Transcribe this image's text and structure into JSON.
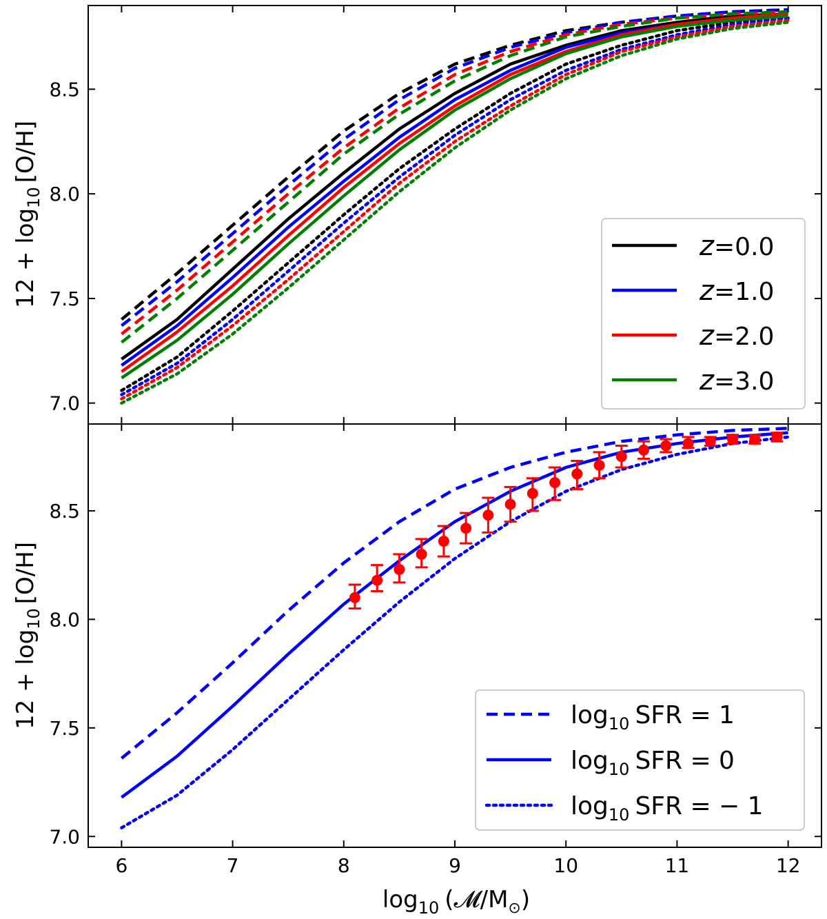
{
  "figure": {
    "type": "two-panel line chart",
    "xlabel": "log10 (𝓜/M⊙)",
    "xlabel_parts": {
      "prefix": "log",
      "sub": "10",
      "rest": "(𝓜/M",
      "sun": "⊙",
      "close": ")"
    },
    "ylabel_parts": {
      "prefix": "12 + log",
      "sub": "10",
      "rest": "[O/H]"
    }
  },
  "chart_data": [
    {
      "type": "line",
      "panel": "top",
      "title": "",
      "xlabel": "log10 (𝓜/M⊙)",
      "ylabel": "12 + log10 [O/H]",
      "xlim": [
        5.7,
        12.3
      ],
      "ylim": [
        6.9,
        8.9
      ],
      "xticks": [
        6,
        7,
        8,
        9,
        10,
        11,
        12
      ],
      "yticks": [
        7.0,
        7.5,
        8.0,
        8.5
      ],
      "ytick_labels": [
        "7.0",
        "7.5",
        "8.0",
        "8.5"
      ],
      "legend": {
        "placement": "lower-right",
        "entries": [
          {
            "label_var": "z",
            "label_value": "=0.0",
            "color": "#000000"
          },
          {
            "label_var": "z",
            "label_value": "=1.0",
            "color": "#0000ff"
          },
          {
            "label_var": "z",
            "label_value": "=2.0",
            "color": "#ff0000"
          },
          {
            "label_var": "z",
            "label_value": "=3.0",
            "color": "#007f00"
          }
        ]
      },
      "x": [
        6,
        6.5,
        7,
        7.5,
        8,
        8.5,
        9,
        9.5,
        10,
        10.5,
        11,
        11.5,
        12
      ],
      "series": [
        {
          "name": "z=0.0 log10 SFR=1",
          "color": "#000000",
          "style": "dashed",
          "values": [
            7.4,
            7.62,
            7.85,
            8.08,
            8.3,
            8.48,
            8.62,
            8.71,
            8.78,
            8.82,
            8.85,
            8.87,
            8.88
          ]
        },
        {
          "name": "z=0.0 log10 SFR=0",
          "color": "#000000",
          "style": "solid",
          "values": [
            7.21,
            7.4,
            7.64,
            7.88,
            8.1,
            8.31,
            8.48,
            8.62,
            8.71,
            8.78,
            8.82,
            8.85,
            8.86
          ]
        },
        {
          "name": "z=0.0 log10 SFR=-1",
          "color": "#000000",
          "style": "dotted",
          "values": [
            7.06,
            7.22,
            7.44,
            7.67,
            7.9,
            8.12,
            8.31,
            8.48,
            8.62,
            8.71,
            8.78,
            8.82,
            8.84
          ]
        },
        {
          "name": "z=1.0 log10 SFR=1",
          "color": "#0000ff",
          "style": "dashed",
          "values": [
            7.37,
            7.58,
            7.81,
            8.04,
            8.26,
            8.45,
            8.6,
            8.7,
            8.77,
            8.82,
            8.85,
            8.87,
            8.88
          ]
        },
        {
          "name": "z=1.0 log10 SFR=0",
          "color": "#0000ff",
          "style": "solid",
          "values": [
            7.18,
            7.37,
            7.6,
            7.84,
            8.06,
            8.27,
            8.45,
            8.59,
            8.7,
            8.77,
            8.81,
            8.84,
            8.86
          ]
        },
        {
          "name": "z=1.0 log10 SFR=-1",
          "color": "#0000ff",
          "style": "dotted",
          "values": [
            7.04,
            7.19,
            7.4,
            7.63,
            7.86,
            8.08,
            8.28,
            8.45,
            8.59,
            8.69,
            8.76,
            8.81,
            8.84
          ]
        },
        {
          "name": "z=2.0 log10 SFR=1",
          "color": "#ff0000",
          "style": "dashed",
          "values": [
            7.33,
            7.54,
            7.77,
            8.0,
            8.22,
            8.41,
            8.57,
            8.68,
            8.76,
            8.81,
            8.84,
            8.86,
            8.87
          ]
        },
        {
          "name": "z=2.0 log10 SFR=0",
          "color": "#ff0000",
          "style": "solid",
          "values": [
            7.15,
            7.34,
            7.56,
            7.8,
            8.03,
            8.24,
            8.42,
            8.57,
            8.68,
            8.76,
            8.81,
            8.84,
            8.86
          ]
        },
        {
          "name": "z=2.0 log10 SFR=-1",
          "color": "#ff0000",
          "style": "dotted",
          "values": [
            7.02,
            7.17,
            7.37,
            7.59,
            7.82,
            8.05,
            8.25,
            8.42,
            8.57,
            8.68,
            8.75,
            8.8,
            8.83
          ]
        },
        {
          "name": "z=3.0 log10 SFR=1",
          "color": "#007f00",
          "style": "dashed",
          "values": [
            7.29,
            7.5,
            7.73,
            7.96,
            8.19,
            8.38,
            8.54,
            8.66,
            8.75,
            8.8,
            8.84,
            8.86,
            8.87
          ]
        },
        {
          "name": "z=3.0 log10 SFR=0",
          "color": "#007f00",
          "style": "solid",
          "values": [
            7.12,
            7.3,
            7.52,
            7.76,
            7.99,
            8.21,
            8.4,
            8.55,
            8.67,
            8.75,
            8.8,
            8.83,
            8.85
          ]
        },
        {
          "name": "z=3.0 log10 SFR=-1",
          "color": "#007f00",
          "style": "dotted",
          "values": [
            7.0,
            7.14,
            7.33,
            7.55,
            7.78,
            8.01,
            8.22,
            8.4,
            8.55,
            8.66,
            8.74,
            8.79,
            8.82
          ]
        }
      ]
    },
    {
      "type": "line",
      "panel": "bottom",
      "title": "",
      "xlabel": "log10 (𝓜/M⊙)",
      "ylabel": "12 + log10 [O/H]",
      "xlim": [
        5.7,
        12.3
      ],
      "ylim": [
        6.95,
        8.9
      ],
      "xticks": [
        6,
        7,
        8,
        9,
        10,
        11,
        12
      ],
      "xtick_labels": [
        "6",
        "7",
        "8",
        "9",
        "10",
        "11",
        "12"
      ],
      "yticks": [
        7.0,
        7.5,
        8.0,
        8.5
      ],
      "ytick_labels": [
        "7.0",
        "7.5",
        "8.0",
        "8.5"
      ],
      "legend": {
        "placement": "lower-right",
        "entries": [
          {
            "label_prefix": "log",
            "label_sub": "10",
            "label_rest": "SFR = 1",
            "color": "#0000ff",
            "style": "dashed"
          },
          {
            "label_prefix": "log",
            "label_sub": "10",
            "label_rest": "SFR = 0",
            "color": "#0000ff",
            "style": "solid"
          },
          {
            "label_prefix": "log",
            "label_sub": "10",
            "label_rest": "SFR = − 1",
            "color": "#0000ff",
            "style": "dotted"
          }
        ]
      },
      "x": [
        6,
        6.5,
        7,
        7.5,
        8,
        8.5,
        9,
        9.5,
        10,
        10.5,
        11,
        11.5,
        12
      ],
      "series": [
        {
          "name": "log10 SFR = 1",
          "color": "#0000ff",
          "style": "dashed",
          "values": [
            7.36,
            7.57,
            7.8,
            8.04,
            8.26,
            8.45,
            8.6,
            8.7,
            8.77,
            8.82,
            8.85,
            8.87,
            8.88
          ]
        },
        {
          "name": "log10 SFR = 0",
          "color": "#0000ff",
          "style": "solid",
          "values": [
            7.18,
            7.37,
            7.6,
            7.84,
            8.07,
            8.27,
            8.45,
            8.59,
            8.7,
            8.77,
            8.81,
            8.84,
            8.86
          ]
        },
        {
          "name": "log10 SFR = -1",
          "color": "#0000ff",
          "style": "dotted",
          "values": [
            7.04,
            7.19,
            7.4,
            7.63,
            7.86,
            8.08,
            8.28,
            8.45,
            8.59,
            8.69,
            8.76,
            8.81,
            8.84
          ]
        }
      ],
      "observations": {
        "name": "data points",
        "color": "#ff0000",
        "x": [
          8.1,
          8.3,
          8.5,
          8.7,
          8.9,
          9.1,
          9.3,
          9.5,
          9.7,
          9.9,
          10.1,
          10.3,
          10.5,
          10.7,
          10.9,
          11.1,
          11.3,
          11.5,
          11.7,
          11.9
        ],
        "y": [
          8.1,
          8.18,
          8.23,
          8.3,
          8.36,
          8.42,
          8.48,
          8.53,
          8.58,
          8.63,
          8.67,
          8.71,
          8.75,
          8.78,
          8.8,
          8.81,
          8.82,
          8.83,
          8.83,
          8.84
        ],
        "err_low": [
          0.05,
          0.05,
          0.06,
          0.06,
          0.07,
          0.07,
          0.08,
          0.08,
          0.08,
          0.08,
          0.07,
          0.06,
          0.05,
          0.04,
          0.03,
          0.02,
          0.02,
          0.02,
          0.02,
          0.02
        ],
        "err_high": [
          0.06,
          0.07,
          0.07,
          0.07,
          0.07,
          0.07,
          0.08,
          0.08,
          0.07,
          0.07,
          0.06,
          0.06,
          0.05,
          0.04,
          0.03,
          0.03,
          0.02,
          0.02,
          0.02,
          0.02
        ]
      }
    }
  ]
}
